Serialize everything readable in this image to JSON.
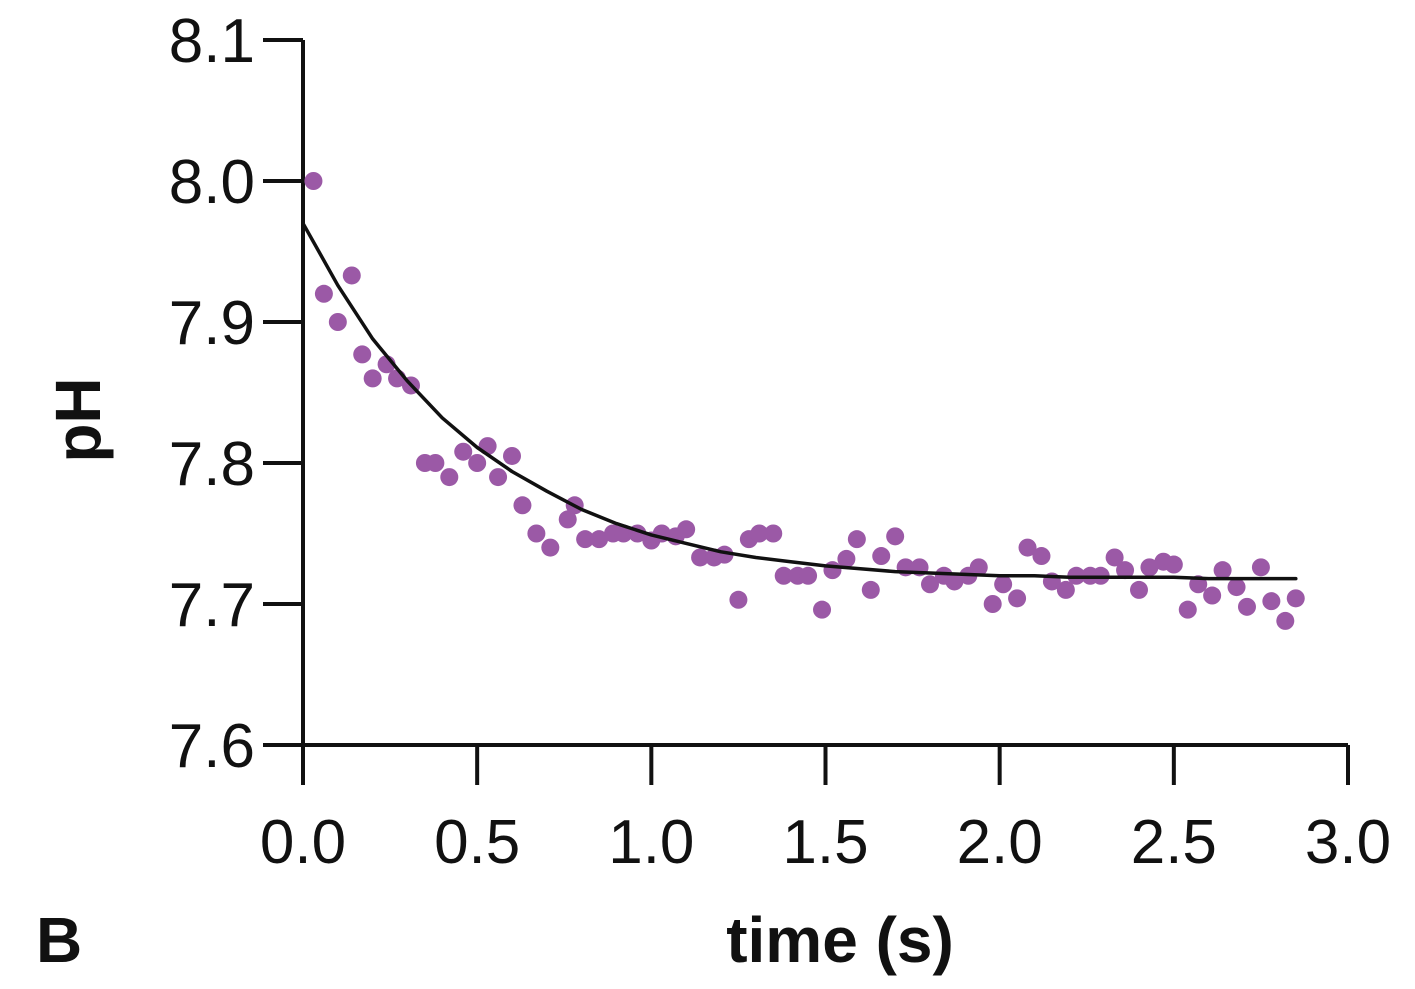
{
  "panel_label": "B",
  "chart_data": {
    "type": "scatter",
    "xlabel": "time (s)",
    "ylabel": "pH",
    "xlim": [
      0.0,
      3.0
    ],
    "ylim": [
      7.6,
      8.1
    ],
    "x_ticks": [
      "0.0",
      "0.5",
      "1.0",
      "1.5",
      "2.0",
      "2.5",
      "3.0"
    ],
    "y_ticks": [
      "8.1",
      "8.0",
      "7.9",
      "7.8",
      "7.7",
      "7.6"
    ],
    "grid": false,
    "marker_color": "#9b59a6",
    "fit_color": "#111111",
    "series": [
      {
        "kind": "points",
        "x": [
          0.03,
          0.06,
          0.1,
          0.14,
          0.17,
          0.2,
          0.24,
          0.27,
          0.31,
          0.35,
          0.38,
          0.42,
          0.46,
          0.5,
          0.53,
          0.56,
          0.6,
          0.63,
          0.67,
          0.71,
          0.76,
          0.78,
          0.81,
          0.85,
          0.89,
          0.92,
          0.96,
          1.0,
          1.03,
          1.07,
          1.1,
          1.14,
          1.18,
          1.21,
          1.25,
          1.28,
          1.31,
          1.35,
          1.38,
          1.42,
          1.45,
          1.49,
          1.52,
          1.56,
          1.59,
          1.63,
          1.66,
          1.7,
          1.73,
          1.77,
          1.8,
          1.84,
          1.87,
          1.91,
          1.94,
          1.98,
          2.01,
          2.05,
          2.08,
          2.12,
          2.15,
          2.19,
          2.22,
          2.26,
          2.29,
          2.33,
          2.36,
          2.4,
          2.43,
          2.47,
          2.5,
          2.54,
          2.57,
          2.61,
          2.64,
          2.68,
          2.71,
          2.75,
          2.78,
          2.82,
          2.85
        ],
        "y": [
          8.0,
          7.92,
          7.9,
          7.933,
          7.877,
          7.86,
          7.87,
          7.86,
          7.855,
          7.8,
          7.8,
          7.79,
          7.808,
          7.8,
          7.812,
          7.79,
          7.805,
          7.77,
          7.75,
          7.74,
          7.76,
          7.77,
          7.746,
          7.746,
          7.75,
          7.75,
          7.75,
          7.745,
          7.75,
          7.748,
          7.753,
          7.733,
          7.733,
          7.735,
          7.703,
          7.746,
          7.75,
          7.75,
          7.72,
          7.72,
          7.72,
          7.696,
          7.724,
          7.732,
          7.746,
          7.71,
          7.734,
          7.748,
          7.726,
          7.726,
          7.714,
          7.72,
          7.716,
          7.72,
          7.726,
          7.7,
          7.714,
          7.704,
          7.74,
          7.734,
          7.716,
          7.71,
          7.72,
          7.72,
          7.72,
          7.733,
          7.724,
          7.71,
          7.726,
          7.73,
          7.728,
          7.696,
          7.714,
          7.706,
          7.724,
          7.712,
          7.698,
          7.726,
          7.702,
          7.688,
          7.704
        ]
      },
      {
        "kind": "fit",
        "x": [
          0.0,
          0.1,
          0.2,
          0.3,
          0.4,
          0.5,
          0.6,
          0.7,
          0.8,
          0.9,
          1.0,
          1.1,
          1.2,
          1.3,
          1.4,
          1.5,
          1.6,
          1.7,
          1.8,
          1.9,
          2.0,
          2.1,
          2.2,
          2.3,
          2.4,
          2.5,
          2.6,
          2.7,
          2.85
        ],
        "y": [
          7.97,
          7.926,
          7.888,
          7.858,
          7.832,
          7.811,
          7.794,
          7.78,
          7.767,
          7.757,
          7.749,
          7.743,
          7.737,
          7.733,
          7.73,
          7.727,
          7.725,
          7.723,
          7.722,
          7.721,
          7.72,
          7.72,
          7.719,
          7.719,
          7.719,
          7.719,
          7.718,
          7.718,
          7.718
        ]
      }
    ]
  }
}
